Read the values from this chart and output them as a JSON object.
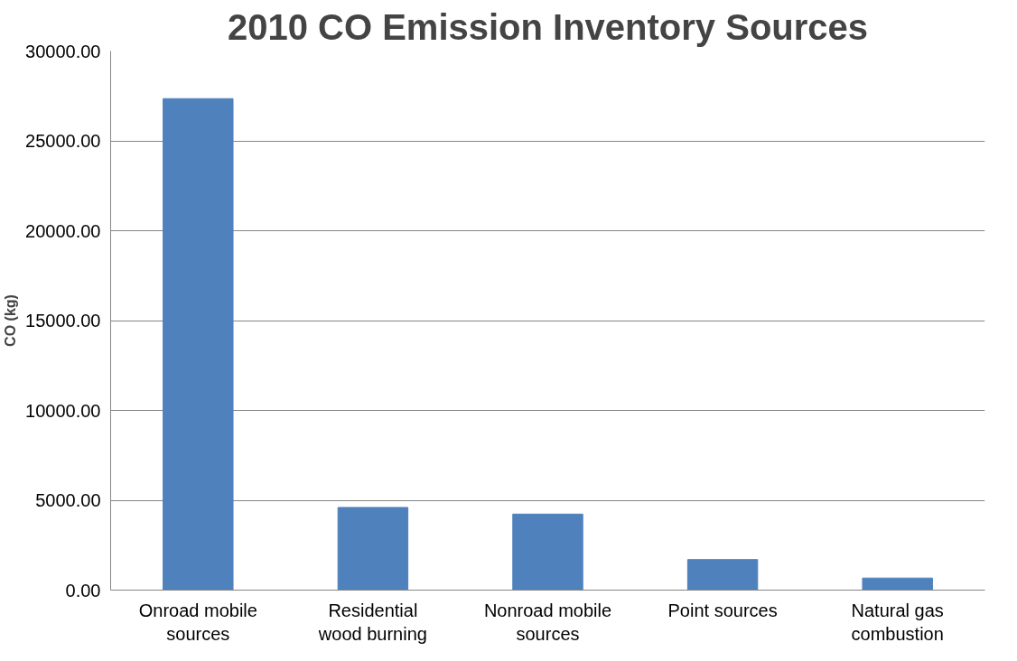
{
  "chart_data": {
    "type": "bar",
    "title": "2010 CO Emission Inventory Sources",
    "ylabel": "CO (kg)",
    "categories": [
      "Onroad mobile\nsources",
      "Residential\nwood burning",
      "Nonroad mobile\nsources",
      "Point sources",
      "Natural gas\ncombustion"
    ],
    "values": [
      27350,
      4600,
      4230,
      1700,
      670
    ],
    "color": "#4f81bd",
    "ylim": [
      0,
      30000
    ],
    "yticks": [
      {
        "value": 0,
        "label": "0.00"
      },
      {
        "value": 5000,
        "label": "5000.00"
      },
      {
        "value": 10000,
        "label": "10000.00"
      },
      {
        "value": 15000,
        "label": "15000.00"
      },
      {
        "value": 20000,
        "label": "20000.00"
      },
      {
        "value": 25000,
        "label": "25000.00"
      },
      {
        "value": 30000,
        "label": "30000.00"
      }
    ],
    "grid": "y"
  }
}
